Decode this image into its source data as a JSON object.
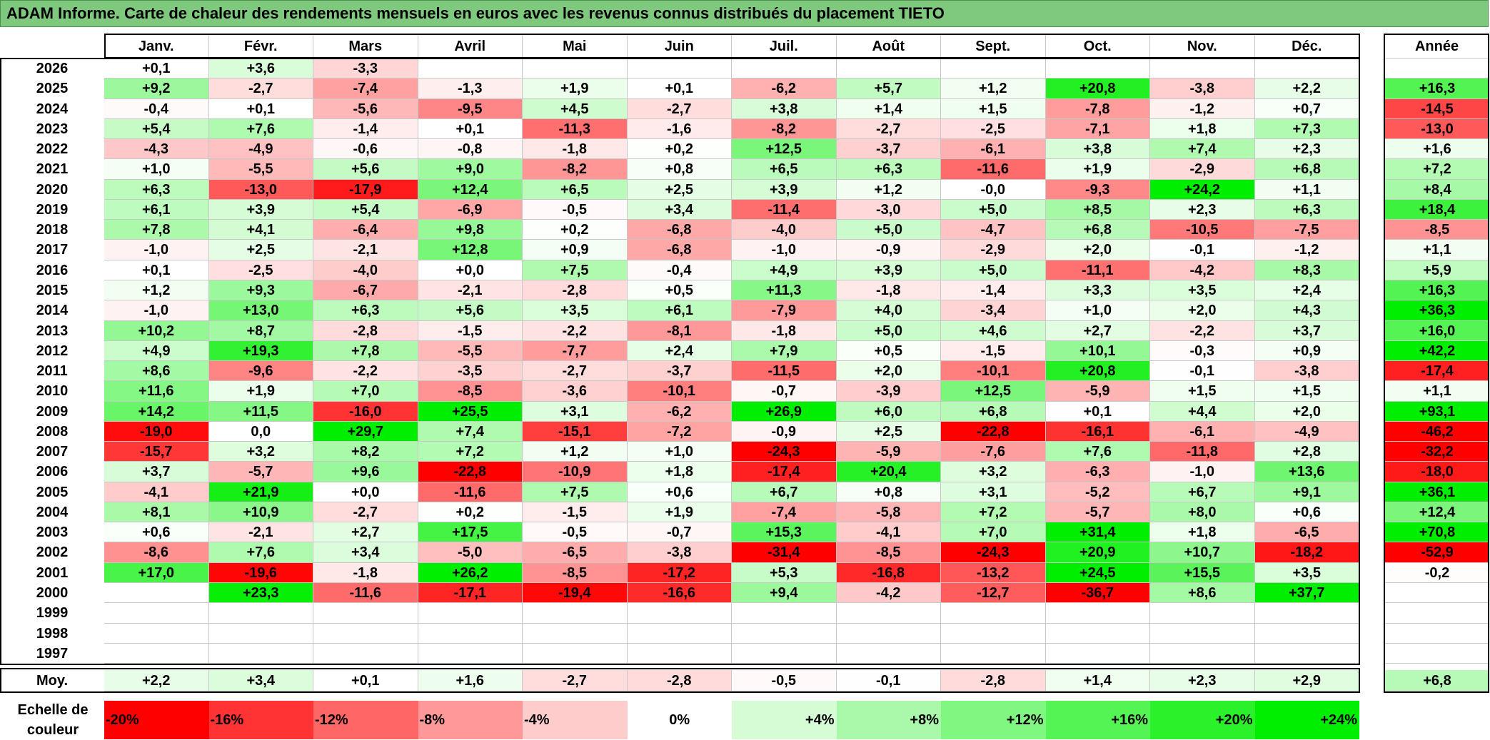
{
  "title": "ADAM Informe. Carte de chaleur des rendements mensuels en euros avec les revenus connus distribués du placement TIETO",
  "colors": {
    "title_bg": "#7fc97f",
    "neg_max": "#ff0000",
    "pos_max": "#00ee00",
    "neutral": "#ffffff"
  },
  "chart_data": {
    "type": "heatmap",
    "title": "ADAM Informe. Carte de chaleur des rendements mensuels en euros avec les revenus connus distribués du placement TIETO",
    "months": [
      "Janv.",
      "Févr.",
      "Mars",
      "Avril",
      "Mai",
      "Juin",
      "Juil.",
      "Août",
      "Sept.",
      "Oct.",
      "Nov.",
      "Déc."
    ],
    "year_label": "Année",
    "rows": [
      {
        "year": "2026",
        "values": [
          "+0,1",
          "+3,6",
          "-3,3",
          "",
          "",
          "",
          "",
          "",
          "",
          "",
          "",
          ""
        ],
        "annual": ""
      },
      {
        "year": "2025",
        "values": [
          "+9,2",
          "-2,7",
          "-7,4",
          "-1,3",
          "+1,9",
          "+0,1",
          "-6,2",
          "+5,7",
          "+1,2",
          "+20,8",
          "-3,8",
          "+2,2"
        ],
        "annual": "+16,3"
      },
      {
        "year": "2024",
        "values": [
          "-0,4",
          "+0,1",
          "-5,6",
          "-9,5",
          "+4,5",
          "-2,7",
          "+3,8",
          "+1,4",
          "+1,5",
          "-7,8",
          "-1,2",
          "+0,7"
        ],
        "annual": "-14,5"
      },
      {
        "year": "2023",
        "values": [
          "+5,4",
          "+7,6",
          "-1,4",
          "+0,1",
          "-11,3",
          "-1,6",
          "-8,2",
          "-2,7",
          "-2,5",
          "-7,1",
          "+1,8",
          "+7,3"
        ],
        "annual": "-13,0"
      },
      {
        "year": "2022",
        "values": [
          "-4,3",
          "-4,9",
          "-0,6",
          "-0,8",
          "-1,8",
          "+0,2",
          "+12,5",
          "-3,7",
          "-6,1",
          "+3,8",
          "+7,4",
          "+2,3"
        ],
        "annual": "+1,6"
      },
      {
        "year": "2021",
        "values": [
          "+1,0",
          "-5,5",
          "+5,6",
          "+9,0",
          "-8,2",
          "+0,8",
          "+6,5",
          "+6,3",
          "-11,6",
          "+1,9",
          "-2,9",
          "+6,8"
        ],
        "annual": "+7,2"
      },
      {
        "year": "2020",
        "values": [
          "+6,3",
          "-13,0",
          "-17,9",
          "+12,4",
          "+6,5",
          "+2,5",
          "+3,9",
          "+1,2",
          "-0,0",
          "-9,3",
          "+24,2",
          "+1,1"
        ],
        "annual": "+8,4"
      },
      {
        "year": "2019",
        "values": [
          "+6,1",
          "+3,9",
          "+5,4",
          "-6,9",
          "-0,5",
          "+3,4",
          "-11,4",
          "-3,0",
          "+5,0",
          "+8,5",
          "+2,3",
          "+6,3"
        ],
        "annual": "+18,4"
      },
      {
        "year": "2018",
        "values": [
          "+7,8",
          "+4,1",
          "-6,4",
          "+9,8",
          "+0,2",
          "-6,8",
          "-4,0",
          "+5,0",
          "-4,7",
          "+6,8",
          "-10,5",
          "-7,5"
        ],
        "annual": "-8,5"
      },
      {
        "year": "2017",
        "values": [
          "-1,0",
          "+2,5",
          "-2,1",
          "+12,8",
          "+0,9",
          "-6,8",
          "-1,0",
          "-0,9",
          "-2,9",
          "+2,0",
          "-0,1",
          "-1,2"
        ],
        "annual": "+1,1"
      },
      {
        "year": "2016",
        "values": [
          "+0,1",
          "-2,5",
          "-4,0",
          "+0,0",
          "+7,5",
          "-0,4",
          "+4,9",
          "+3,9",
          "+5,0",
          "-11,1",
          "-4,2",
          "+8,3"
        ],
        "annual": "+5,9"
      },
      {
        "year": "2015",
        "values": [
          "+1,2",
          "+9,3",
          "-6,7",
          "-2,1",
          "-2,8",
          "+0,5",
          "+11,3",
          "-1,8",
          "-1,4",
          "+3,3",
          "+3,5",
          "+2,4"
        ],
        "annual": "+16,3"
      },
      {
        "year": "2014",
        "values": [
          "-1,0",
          "+13,0",
          "+6,3",
          "+5,6",
          "+3,5",
          "+6,1",
          "-7,9",
          "+4,0",
          "-3,4",
          "+1,0",
          "+2,0",
          "+4,3"
        ],
        "annual": "+36,3"
      },
      {
        "year": "2013",
        "values": [
          "+10,2",
          "+8,7",
          "-2,8",
          "-1,5",
          "-2,2",
          "-8,1",
          "-1,8",
          "+5,0",
          "+4,6",
          "+2,7",
          "-2,2",
          "+3,7"
        ],
        "annual": "+16,0"
      },
      {
        "year": "2012",
        "values": [
          "+4,9",
          "+19,3",
          "+7,8",
          "-5,5",
          "-7,7",
          "+2,4",
          "+7,9",
          "+0,5",
          "-1,5",
          "+10,1",
          "-0,3",
          "+0,9"
        ],
        "annual": "+42,2"
      },
      {
        "year": "2011",
        "values": [
          "+8,6",
          "-9,6",
          "-2,2",
          "-3,5",
          "-2,7",
          "-3,7",
          "-11,5",
          "+2,0",
          "-10,1",
          "+20,8",
          "-0,1",
          "-3,8"
        ],
        "annual": "-17,4"
      },
      {
        "year": "2010",
        "values": [
          "+11,6",
          "+1,9",
          "+7,0",
          "-8,5",
          "-3,6",
          "-10,1",
          "-0,7",
          "-3,9",
          "+12,5",
          "-5,9",
          "+1,5",
          "+1,5"
        ],
        "annual": "+1,1"
      },
      {
        "year": "2009",
        "values": [
          "+14,2",
          "+11,5",
          "-16,0",
          "+25,5",
          "+3,1",
          "-6,2",
          "+26,9",
          "+6,0",
          "+6,8",
          "+0,1",
          "+4,4",
          "+2,0"
        ],
        "annual": "+93,1"
      },
      {
        "year": "2008",
        "values": [
          "-19,0",
          "0,0",
          "+29,7",
          "+7,4",
          "-15,1",
          "-7,2",
          "-0,9",
          "+2,5",
          "-22,8",
          "-16,1",
          "-6,1",
          "-4,9"
        ],
        "annual": "-46,2"
      },
      {
        "year": "2007",
        "values": [
          "-15,7",
          "+3,2",
          "+8,2",
          "+7,2",
          "+1,2",
          "+1,0",
          "-24,3",
          "-5,9",
          "-7,6",
          "+7,6",
          "-11,8",
          "+2,8"
        ],
        "annual": "-32,2"
      },
      {
        "year": "2006",
        "values": [
          "+3,7",
          "-5,7",
          "+9,6",
          "-22,8",
          "-10,9",
          "+1,8",
          "-17,4",
          "+20,4",
          "+3,2",
          "-6,3",
          "-1,0",
          "+13,6"
        ],
        "annual": "-18,0"
      },
      {
        "year": "2005",
        "values": [
          "-4,1",
          "+21,9",
          "+0,0",
          "-11,6",
          "+7,5",
          "+0,6",
          "+6,7",
          "+0,8",
          "+3,1",
          "-5,2",
          "+6,7",
          "+9,1"
        ],
        "annual": "+36,1"
      },
      {
        "year": "2004",
        "values": [
          "+8,1",
          "+10,9",
          "-2,7",
          "+0,2",
          "-1,5",
          "+1,9",
          "-7,4",
          "-5,8",
          "+7,2",
          "-5,7",
          "+8,0",
          "+0,6"
        ],
        "annual": "+12,4"
      },
      {
        "year": "2003",
        "values": [
          "+0,6",
          "-2,1",
          "+2,7",
          "+17,5",
          "-0,5",
          "-0,7",
          "+15,3",
          "-4,1",
          "+7,0",
          "+31,4",
          "+1,8",
          "-6,5"
        ],
        "annual": "+70,8"
      },
      {
        "year": "2002",
        "values": [
          "-8,6",
          "+7,6",
          "+3,4",
          "-5,0",
          "-6,5",
          "-3,8",
          "-31,4",
          "-8,5",
          "-24,3",
          "+20,9",
          "+10,7",
          "-18,2"
        ],
        "annual": "-52,9"
      },
      {
        "year": "2001",
        "values": [
          "+17,0",
          "-19,6",
          "-1,8",
          "+26,2",
          "-8,5",
          "-17,2",
          "+5,3",
          "-16,8",
          "-13,2",
          "+24,5",
          "+15,5",
          "+3,5"
        ],
        "annual": "-0,2"
      },
      {
        "year": "2000",
        "values": [
          "",
          "+23,3",
          "-11,6",
          "-17,1",
          "-19,4",
          "-16,6",
          "+9,4",
          "-4,2",
          "-12,7",
          "-36,7",
          "+8,6",
          "+37,7"
        ],
        "annual": ""
      },
      {
        "year": "1999",
        "values": [
          "",
          "",
          "",
          "",
          "",
          "",
          "",
          "",
          "",
          "",
          "",
          ""
        ],
        "annual": ""
      },
      {
        "year": "1998",
        "values": [
          "",
          "",
          "",
          "",
          "",
          "",
          "",
          "",
          "",
          "",
          "",
          ""
        ],
        "annual": ""
      },
      {
        "year": "1997",
        "values": [
          "",
          "",
          "",
          "",
          "",
          "",
          "",
          "",
          "",
          "",
          "",
          ""
        ],
        "annual": ""
      }
    ],
    "average": {
      "label": "Moy.",
      "values": [
        "+2,2",
        "+3,4",
        "+0,1",
        "+1,6",
        "-2,7",
        "-2,8",
        "-0,5",
        "-0,1",
        "-2,8",
        "+1,4",
        "+2,3",
        "+2,9"
      ],
      "annual": "+6,8"
    },
    "scale": {
      "label": "Echelle de couleur",
      "steps": [
        "-20%",
        "-16%",
        "-12%",
        "-8%",
        "-4%",
        "0%",
        "+4%",
        "+8%",
        "+12%",
        "+16%",
        "+20%",
        "+24%"
      ],
      "values": [
        -20,
        -16,
        -12,
        -8,
        -4,
        0,
        4,
        8,
        12,
        16,
        20,
        24
      ]
    }
  }
}
